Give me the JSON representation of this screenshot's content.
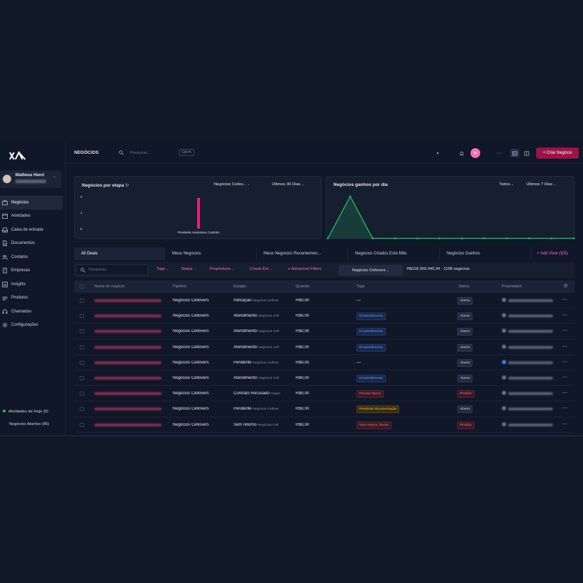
{
  "sidebar": {
    "user": {
      "name": "Matheus Henri"
    },
    "items": [
      {
        "label": "Negócios",
        "icon": "briefcase-icon",
        "active": true
      },
      {
        "label": "Atividades",
        "icon": "calendar-icon"
      },
      {
        "label": "Caixa de entrada",
        "icon": "inbox-icon"
      },
      {
        "label": "Documentos",
        "icon": "document-icon"
      },
      {
        "label": "Contatos",
        "icon": "users-icon"
      },
      {
        "label": "Empresas",
        "icon": "building-icon"
      },
      {
        "label": "Insights",
        "icon": "chart-icon"
      },
      {
        "label": "Produtos",
        "icon": "layers-icon"
      },
      {
        "label": "Chamados",
        "icon": "headset-icon"
      },
      {
        "label": "Configurações",
        "icon": "gear-icon"
      }
    ],
    "footer": {
      "activities_today": "Atividades de Hoje (0)",
      "open_deals": "Negócios Abertos (86)"
    }
  },
  "topbar": {
    "title": "NEGÓCIOS",
    "search_placeholder": "Pesquisar...",
    "shortcut": "Ctrl K",
    "create_label": "+ Criar Negócio"
  },
  "cards": {
    "stage": {
      "title": "Negócios por etapa",
      "pipeline_filter": "Negócios Cellov...",
      "period_filter": "Últimos 30 Dias",
      "chart_data": {
        "type": "bar",
        "categories": [
          "Pendente Assinatura Contrato"
        ],
        "values": [
          2
        ],
        "ylim": [
          0,
          2
        ],
        "yticks": [
          "2",
          "1",
          "0"
        ],
        "color": "#ec1f76"
      }
    },
    "won": {
      "title": "Negócios ganhos por dia",
      "filter_all": "Todos",
      "period_filter": "Últimos 7 Dias",
      "chart_data": {
        "type": "area",
        "values": [
          0,
          1,
          0,
          0,
          0,
          0,
          0,
          0,
          0,
          0,
          0,
          0
        ],
        "ylim": [
          0,
          1
        ],
        "color": "#22c55e"
      }
    }
  },
  "tabs": [
    "All Deals",
    "Meus Negocios",
    "Meus Negocios Recentemen...",
    "Negócios Criados Este Mês",
    "Negócios Ganhos",
    "+ Add View (5/5)"
  ],
  "filters": {
    "search_placeholder": "Pesquisar...",
    "tags": "Tags",
    "status": "Status",
    "owner": "Proprietario",
    "created": "Criado Em",
    "advanced": "Advanced Filters",
    "pipeline": "Negócios Cellovers",
    "summary": "R$118.369.340,34 - 1108 negócios"
  },
  "table": {
    "headers": [
      "Nome do negócio",
      "Pipeline",
      "Estágio",
      "Quantia",
      "Tags",
      "Status",
      "Proprietário"
    ],
    "rows": [
      {
        "pipeline": "Negócios Cellovers",
        "stage": "Indicação",
        "stage_sub": "Negócios Cellove",
        "amount": "R$0,00",
        "tag": "—",
        "tag_color": "",
        "status": "Aberto",
        "status_kind": "open"
      },
      {
        "pipeline": "Negócios Cellovers",
        "stage": "Atendimento",
        "stage_sub": "Negócios Cell",
        "amount": "R$0,00",
        "tag": "Ematendimento",
        "tag_color": "blue",
        "status": "Aberto",
        "status_kind": "open"
      },
      {
        "pipeline": "Negócios Cellovers",
        "stage": "Atendimento",
        "stage_sub": "Negócios Cell",
        "amount": "R$0,00",
        "tag": "Ematendimento",
        "tag_color": "blue",
        "status": "Aberto",
        "status_kind": "open"
      },
      {
        "pipeline": "Negócios Cellovers",
        "stage": "Atendimento",
        "stage_sub": "Negócios Cell",
        "amount": "R$0,00",
        "tag": "Ematendimento",
        "tag_color": "blue",
        "status": "Aberto",
        "status_kind": "open"
      },
      {
        "pipeline": "Negócios Cellovers",
        "stage": "Pendente",
        "stage_sub": "Negócios Cellove",
        "amount": "R$0,00",
        "tag": "—",
        "tag_color": "",
        "status": "Aberto",
        "status_kind": "open"
      },
      {
        "pipeline": "Negócios Cellovers",
        "stage": "Atendimento",
        "stage_sub": "Negócios Cell",
        "amount": "R$0,00",
        "tag": "Ematendimento",
        "tag_color": "blue",
        "status": "Aberto",
        "status_kind": "open"
      },
      {
        "pipeline": "Negócios Cellovers",
        "stage": "Contrato Recusado",
        "stage_sub": "Negoc",
        "amount": "R$0,00",
        "tag": "Recusa Banco",
        "tag_color": "red",
        "status": "Perdido",
        "status_kind": "lost"
      },
      {
        "pipeline": "Negócios Cellovers",
        "stage": "Pendente",
        "stage_sub": "Negócios Cellove",
        "amount": "R$0,00",
        "tag": "Pendente documentação",
        "tag_color": "yellow",
        "status": "Aberto",
        "status_kind": "open"
      },
      {
        "pipeline": "Negócios Cellovers",
        "stage": "Sem retorno",
        "stage_sub": "Negócios Cell",
        "amount": "R$0,00",
        "tag": "Sem retorno cliente",
        "tag_color": "red",
        "status": "Perdido",
        "status_kind": "lost"
      }
    ]
  }
}
